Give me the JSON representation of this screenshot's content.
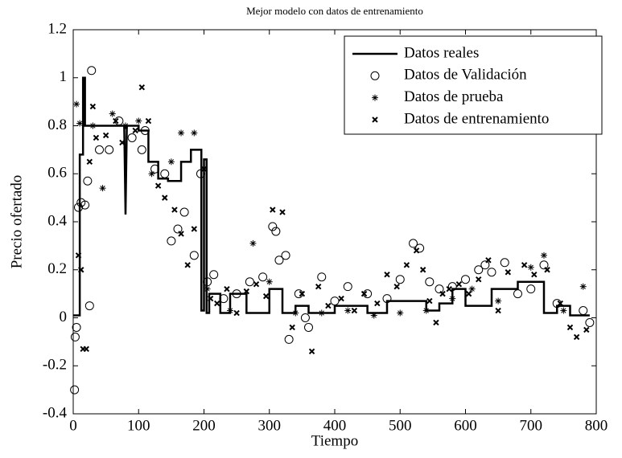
{
  "chart_data": {
    "type": "line",
    "title": "Mejor modelo con datos de entrenamiento",
    "xlabel": "Tiempo",
    "ylabel": "Precio ofertado",
    "xlim": [
      0,
      800
    ],
    "ylim": [
      -0.4,
      1.2
    ],
    "xticks": [
      0,
      100,
      200,
      300,
      400,
      500,
      600,
      700,
      800
    ],
    "yticks": [
      -0.4,
      -0.2,
      0,
      0.2,
      0.4,
      0.6,
      0.8,
      1,
      1.2
    ],
    "grid": false,
    "legend": "upper right",
    "series": [
      {
        "name": "Datos reales",
        "style": "line",
        "color": "#000000",
        "x": [
          0,
          10,
          10,
          15,
          15,
          18,
          18,
          78,
          80,
          82,
          100,
          100,
          115,
          115,
          130,
          130,
          145,
          145,
          165,
          165,
          180,
          180,
          196,
          196,
          200,
          200,
          204,
          204,
          208,
          208,
          225,
          225,
          240,
          240,
          265,
          265,
          300,
          300,
          320,
          320,
          340,
          340,
          360,
          360,
          400,
          400,
          450,
          450,
          480,
          480,
          540,
          540,
          560,
          560,
          580,
          580,
          600,
          600,
          640,
          640,
          680,
          680,
          720,
          720,
          740,
          740,
          760,
          760,
          790
        ],
        "values": [
          0.01,
          0.01,
          0.68,
          0.68,
          1.0,
          1.0,
          0.8,
          0.8,
          0.43,
          0.8,
          0.8,
          0.78,
          0.78,
          0.65,
          0.65,
          0.58,
          0.58,
          0.57,
          0.57,
          0.65,
          0.65,
          0.7,
          0.7,
          0.03,
          0.03,
          0.66,
          0.66,
          0.02,
          0.02,
          0.1,
          0.1,
          0.02,
          0.02,
          0.1,
          0.1,
          0.02,
          0.02,
          0.12,
          0.12,
          0.02,
          0.02,
          0.05,
          0.05,
          0.02,
          0.02,
          0.05,
          0.05,
          0.02,
          0.02,
          0.07,
          0.07,
          0.03,
          0.03,
          0.06,
          0.06,
          0.12,
          0.12,
          0.05,
          0.05,
          0.12,
          0.12,
          0.15,
          0.15,
          0.02,
          0.02,
          0.05,
          0.05,
          0.01,
          0.01
        ]
      },
      {
        "name": "Datos de Validación",
        "style": "circle",
        "color": "#000000",
        "x": [
          2,
          3,
          5,
          8,
          12,
          18,
          22,
          25,
          28,
          40,
          55,
          70,
          90,
          105,
          110,
          125,
          140,
          150,
          160,
          170,
          185,
          195,
          205,
          215,
          230,
          250,
          270,
          290,
          305,
          310,
          315,
          325,
          330,
          345,
          355,
          360,
          380,
          400,
          420,
          450,
          480,
          500,
          520,
          530,
          545,
          560,
          580,
          600,
          620,
          630,
          640,
          660,
          680,
          700,
          720,
          740,
          780,
          790
        ],
        "values": [
          -0.3,
          -0.08,
          -0.04,
          0.46,
          0.48,
          0.47,
          0.57,
          0.05,
          1.03,
          0.7,
          0.7,
          0.82,
          0.75,
          0.7,
          0.78,
          0.62,
          0.6,
          0.32,
          0.37,
          0.44,
          0.26,
          0.6,
          0.15,
          0.18,
          0.08,
          0.1,
          0.15,
          0.17,
          0.38,
          0.36,
          0.24,
          0.26,
          -0.09,
          0.1,
          0,
          -0.04,
          0.17,
          0.07,
          0.13,
          0.1,
          0.08,
          0.16,
          0.31,
          0.29,
          0.15,
          0.12,
          0.13,
          0.16,
          0.2,
          0.22,
          0.19,
          0.23,
          0.1,
          0.12,
          0.22,
          0.06,
          0.03,
          -0.02
        ]
      },
      {
        "name": "Datos de prueba",
        "style": "star",
        "color": "#000000",
        "x": [
          5,
          10,
          30,
          45,
          60,
          80,
          100,
          120,
          150,
          165,
          185,
          205,
          240,
          275,
          300,
          340,
          380,
          420,
          460,
          500,
          540,
          580,
          610,
          650,
          700,
          720,
          750,
          780
        ],
        "values": [
          0.89,
          0.81,
          0.8,
          0.54,
          0.85,
          0.8,
          0.82,
          0.6,
          0.65,
          0.77,
          0.77,
          0.12,
          0.03,
          0.31,
          0.15,
          0.02,
          0.02,
          0.03,
          0.01,
          0.02,
          0.03,
          0.08,
          0.12,
          0.07,
          0.21,
          0.26,
          0.03,
          0.13
        ]
      },
      {
        "name": "Datos de entrenamiento",
        "style": "x",
        "color": "#000000",
        "x": [
          8,
          12,
          15,
          20,
          25,
          30,
          35,
          50,
          65,
          75,
          95,
          105,
          115,
          130,
          140,
          155,
          165,
          175,
          185,
          200,
          210,
          220,
          235,
          250,
          265,
          280,
          295,
          305,
          320,
          335,
          350,
          365,
          375,
          390,
          410,
          430,
          445,
          465,
          480,
          495,
          510,
          525,
          535,
          545,
          555,
          565,
          575,
          590,
          605,
          620,
          635,
          650,
          665,
          690,
          705,
          725,
          745,
          760,
          770,
          785
        ],
        "values": [
          0.26,
          0.2,
          -0.13,
          -0.13,
          0.65,
          0.88,
          0.75,
          0.76,
          0.82,
          0.73,
          0.78,
          0.96,
          0.82,
          0.55,
          0.5,
          0.45,
          0.35,
          0.22,
          0.37,
          0.62,
          0.08,
          0.06,
          0.12,
          0.02,
          0.11,
          0.14,
          0.09,
          0.45,
          0.44,
          -0.04,
          0.1,
          -0.14,
          0.13,
          0.05,
          0.08,
          0.03,
          0.1,
          0.06,
          0.18,
          0.13,
          0.22,
          0.28,
          0.2,
          0.07,
          -0.02,
          0.1,
          0.12,
          0.14,
          0.1,
          0.16,
          0.24,
          0.03,
          0.19,
          0.22,
          0.18,
          0.2,
          0.06,
          -0.04,
          -0.08,
          -0.05
        ]
      }
    ]
  }
}
